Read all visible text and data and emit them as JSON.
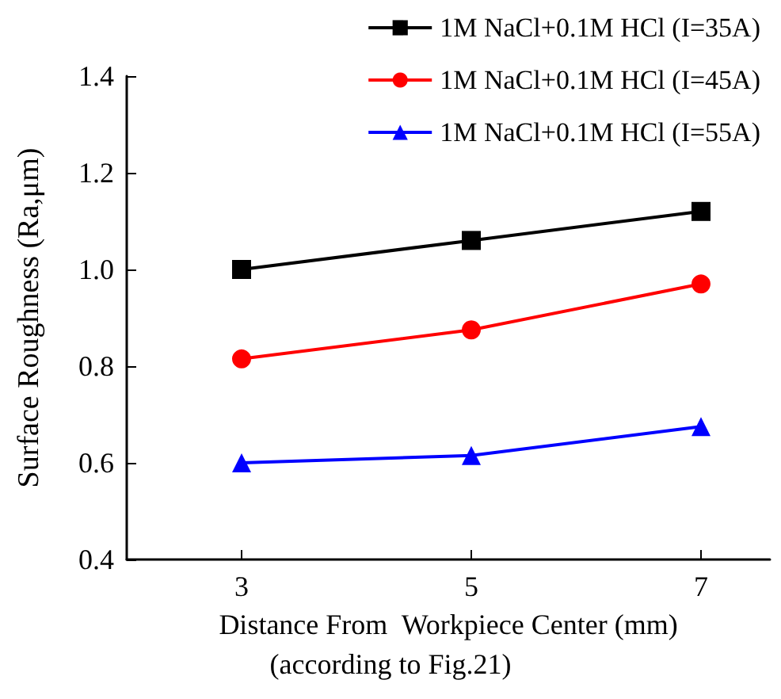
{
  "chart_data": {
    "type": "line",
    "xlabel": "Distance From  Workpiece Center (mm)",
    "ylabel": "Surface Roughness (Ra,μm)",
    "annotations": [
      "(according to Fig.21)"
    ],
    "x": [
      3,
      5,
      7
    ],
    "xlim": [
      2,
      7.6
    ],
    "xticks": [
      3,
      5,
      7
    ],
    "ylim": [
      0.4,
      1.4
    ],
    "yticks": [
      {
        "value": 0.4,
        "label": "0.4"
      },
      {
        "value": 0.6,
        "label": "0.6"
      },
      {
        "value": 0.8,
        "label": "0.8"
      },
      {
        "value": 1.0,
        "label": "1.0"
      },
      {
        "value": 1.2,
        "label": "1.2"
      },
      {
        "value": 1.4,
        "label": "1.4"
      }
    ],
    "grid": false,
    "legend": "top right",
    "series": [
      {
        "name": "1M NaCl+0.1M HCl (I=35A)",
        "color": "#000000",
        "marker": "square",
        "values": [
          1.0,
          1.06,
          1.12
        ]
      },
      {
        "name": "1M NaCl+0.1M HCl (I=45A)",
        "color": "#ff0000",
        "marker": "circle",
        "values": [
          0.815,
          0.875,
          0.97
        ]
      },
      {
        "name": "1M NaCl+0.1M HCl (I=55A)",
        "color": "#0000ff",
        "marker": "triangle",
        "values": [
          0.6,
          0.615,
          0.675
        ]
      }
    ]
  }
}
